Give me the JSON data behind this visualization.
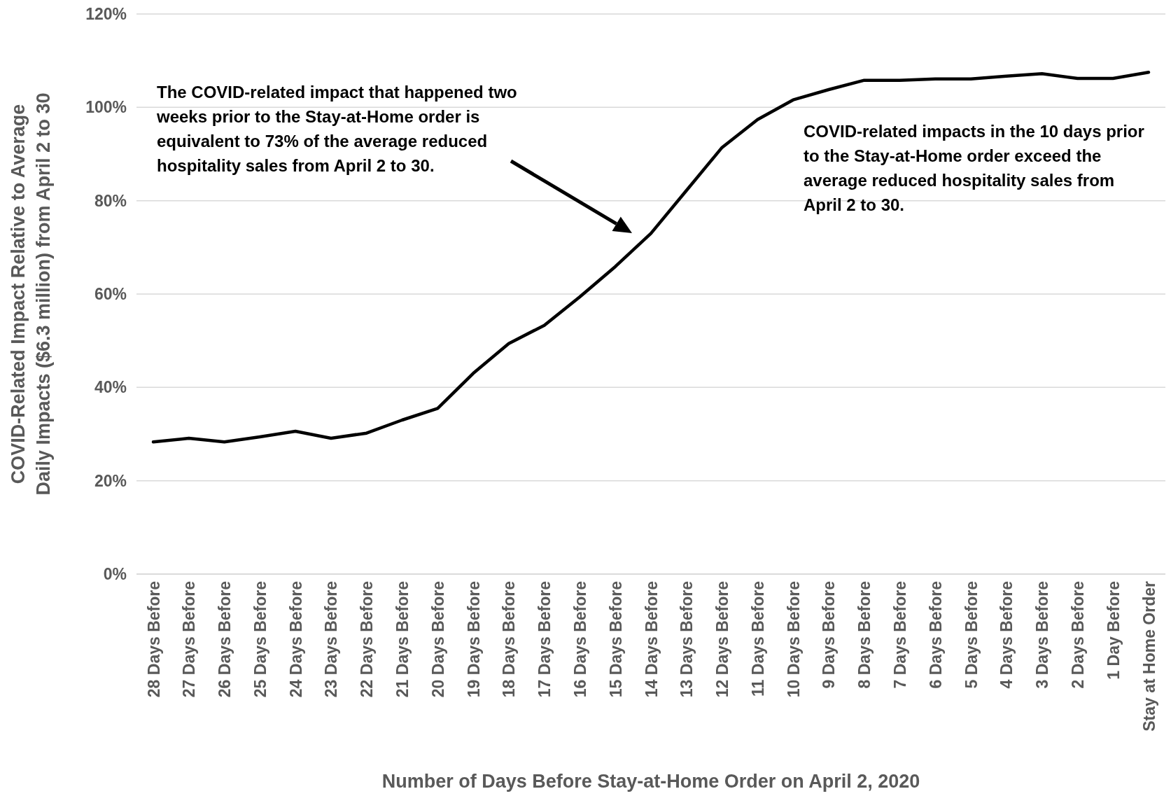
{
  "chart_data": {
    "type": "line",
    "xlabel": "Number of Days Before Stay-at-Home Order on April 2, 2020",
    "ylabel": "COVID-Related Impact Relative to Average Daily Impacts ($6.3 million) from April 2 to 30",
    "categories": [
      "28 Days Before",
      "27 Days Before",
      "26 Days Before",
      "25 Days Before",
      "24 Days Before",
      "23 Days Before",
      "22 Days Before",
      "21 Days Before",
      "20 Days Before",
      "19 Days Before",
      "18 Days Before",
      "17 Days Before",
      "16 Days Before",
      "15 Days Before",
      "14 Days Before",
      "13 Days Before",
      "12 Days Before",
      "11 Days Before",
      "10 Days Before",
      "9 Days Before",
      "8 Days Before",
      "7 Days Before",
      "6 Days Before",
      "5 Days Before",
      "4 Days Before",
      "3 Days Before",
      "2 Days Before",
      "1 Day Before",
      "Stay at Home Order"
    ],
    "series": [
      {
        "color": "#000000",
        "values": [
          28.3,
          29.1,
          28.3,
          29.4,
          30.6,
          29.1,
          30.2,
          33.0,
          35.5,
          43.0,
          49.4,
          53.3,
          59.4,
          65.9,
          73.0,
          82.2,
          91.4,
          97.4,
          101.6,
          103.8,
          105.8,
          105.8,
          106.1,
          106.1,
          106.7,
          107.2,
          106.2,
          106.2,
          107.5
        ]
      }
    ],
    "ylim": [
      0,
      120
    ],
    "yticks": [
      {
        "value": 0,
        "label": "0%"
      },
      {
        "value": 20,
        "label": "20%"
      },
      {
        "value": 40,
        "label": "40%"
      },
      {
        "value": 60,
        "label": "60%"
      },
      {
        "value": 80,
        "label": "80%"
      },
      {
        "value": 100,
        "label": "100%"
      },
      {
        "value": 120,
        "label": "120%"
      }
    ],
    "grid": "y",
    "marker": "none",
    "line_style": "solid",
    "annotations": [
      "The COVID-related impact that happened two weeks prior to the Stay-at-Home order is equivalent to 73% of the average reduced hospitality sales from April 2 to 30.",
      "COVID-related impacts in the 10 days prior to the Stay-at-Home order exceed the average reduced hospitality sales from April 2 to 30."
    ]
  }
}
